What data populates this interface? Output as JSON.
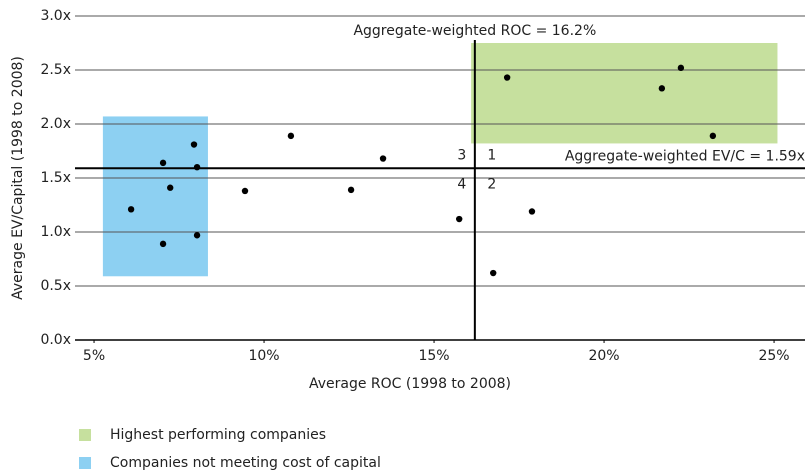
{
  "chart_data": {
    "type": "scatter",
    "x_label": "Average ROC (1998 to 2008)",
    "y_label": "Average EV/Capital (1998 to 2008)",
    "x": [
      6.09,
      7.03,
      7.94,
      8.03,
      7.24,
      7.03,
      8.03,
      9.44,
      10.79,
      12.56,
      13.5,
      15.74,
      16.74,
      17.88,
      17.15,
      21.7,
      22.26,
      23.2
    ],
    "values": [
      1.21,
      1.64,
      1.81,
      1.6,
      1.41,
      0.89,
      0.97,
      1.38,
      1.89,
      1.39,
      1.68,
      1.12,
      0.62,
      1.19,
      2.43,
      2.33,
      2.52,
      1.89
    ],
    "color": "#000000",
    "xlim": [
      4.44,
      25.91
    ],
    "ylim": [
      0,
      3
    ],
    "xticks": [
      {
        "value": 5,
        "label": "5%"
      },
      {
        "value": 10,
        "label": "10%"
      },
      {
        "value": 15,
        "label": "15%"
      },
      {
        "value": 20,
        "label": "20%"
      },
      {
        "value": 25,
        "label": "25%"
      }
    ],
    "yticks": [
      {
        "value": 0,
        "label": "0.0x"
      },
      {
        "value": 0.5,
        "label": "0.5x"
      },
      {
        "value": 1,
        "label": "1.0x"
      },
      {
        "value": 1.5,
        "label": "1.5x"
      },
      {
        "value": 2,
        "label": "2.0x"
      },
      {
        "value": 2.5,
        "label": "2.5x"
      },
      {
        "value": 3,
        "label": "3.0x"
      }
    ],
    "grid": true,
    "reference_lines": [
      {
        "axis": "x",
        "value": 16.2,
        "label": "Aggregate-weighted ROC = 16.2%"
      },
      {
        "axis": "y",
        "value": 1.59,
        "label": "Aggregate-weighted EV/C = 1.59x"
      }
    ],
    "regions": [
      {
        "name": "Highest performing companies",
        "color": "#c6e09e",
        "x": [
          16.09,
          25.1
        ],
        "y": [
          1.82,
          2.75
        ]
      },
      {
        "name": "Companies not meeting cost of capital",
        "color": "#8dd0f2",
        "x": [
          5.26,
          8.35
        ],
        "y": [
          0.59,
          2.07
        ]
      }
    ],
    "quadrant_labels": [
      "1",
      "2",
      "3",
      "4"
    ]
  }
}
